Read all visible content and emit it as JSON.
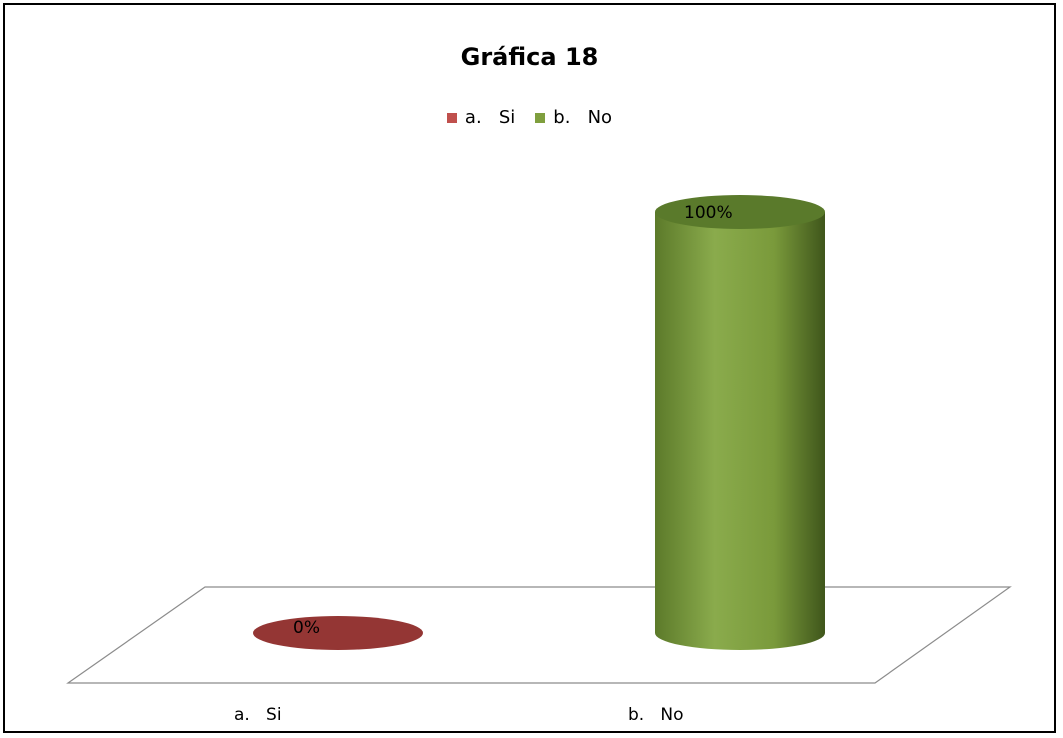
{
  "chart_data": {
    "type": "bar",
    "title": "Gráfica 18",
    "categories": [
      "a.   Si",
      "b.   No"
    ],
    "values": [
      0,
      100
    ],
    "data_labels": [
      "0%",
      "100%"
    ],
    "colors": [
      "#c0504d",
      "#7f9f3e"
    ],
    "ylim": [
      0,
      100
    ],
    "legend": {
      "position": "top",
      "entries": [
        "a.   Si",
        "b.   No"
      ]
    },
    "grid": false,
    "style": "3d-cylinder"
  }
}
